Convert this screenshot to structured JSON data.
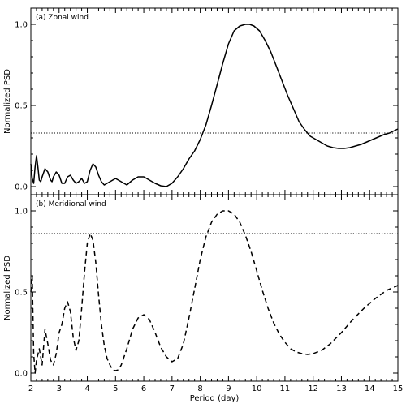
{
  "chart_data": [
    {
      "type": "line",
      "panel_label": "(a) Zonal wind",
      "xlabel": "",
      "ylabel": "Normalized PSD",
      "xlim": [
        2,
        15
      ],
      "ylim": [
        -0.05,
        1.1
      ],
      "xticks": [
        2,
        3,
        4,
        5,
        6,
        7,
        8,
        9,
        10,
        11,
        12,
        13,
        14,
        15
      ],
      "yticks": [
        0.0,
        0.5,
        1.0
      ],
      "ytick_labels": [
        "0.0",
        "0.5",
        "1.0"
      ],
      "xtick_labels": [
        "",
        "",
        "",
        "",
        "",
        "",
        "",
        "",
        "",
        "",
        "",
        "",
        "",
        ""
      ],
      "threshold": 0.33,
      "threshold_style": "dotted",
      "series": [
        {
          "line_style": "solid",
          "x": [
            2.0,
            2.05,
            2.1,
            2.15,
            2.2,
            2.25,
            2.3,
            2.35,
            2.4,
            2.5,
            2.6,
            2.7,
            2.75,
            2.8,
            2.9,
            3.0,
            3.1,
            3.2,
            3.3,
            3.4,
            3.5,
            3.6,
            3.7,
            3.8,
            3.9,
            4.0,
            4.1,
            4.2,
            4.3,
            4.4,
            4.5,
            4.6,
            4.8,
            5.0,
            5.2,
            5.4,
            5.6,
            5.8,
            6.0,
            6.2,
            6.4,
            6.6,
            6.8,
            7.0,
            7.2,
            7.4,
            7.6,
            7.8,
            8.0,
            8.2,
            8.4,
            8.6,
            8.8,
            9.0,
            9.2,
            9.4,
            9.6,
            9.75,
            9.9,
            10.1,
            10.3,
            10.5,
            10.7,
            10.9,
            11.1,
            11.3,
            11.5,
            11.7,
            11.9,
            12.1,
            12.3,
            12.5,
            12.7,
            12.9,
            13.1,
            13.3,
            13.5,
            13.7,
            13.9,
            14.1,
            14.3,
            14.5,
            14.7,
            15.0
          ],
          "y": [
            0.14,
            0.05,
            0.02,
            0.12,
            0.19,
            0.12,
            0.04,
            0.03,
            0.06,
            0.11,
            0.09,
            0.04,
            0.03,
            0.06,
            0.09,
            0.07,
            0.02,
            0.02,
            0.06,
            0.07,
            0.04,
            0.02,
            0.03,
            0.05,
            0.02,
            0.03,
            0.1,
            0.14,
            0.12,
            0.07,
            0.03,
            0.01,
            0.03,
            0.05,
            0.03,
            0.01,
            0.04,
            0.06,
            0.06,
            0.04,
            0.02,
            0.005,
            0.0,
            0.02,
            0.06,
            0.11,
            0.17,
            0.22,
            0.29,
            0.38,
            0.5,
            0.63,
            0.76,
            0.88,
            0.96,
            0.99,
            1.0,
            1.0,
            0.99,
            0.96,
            0.9,
            0.83,
            0.74,
            0.65,
            0.56,
            0.48,
            0.4,
            0.35,
            0.31,
            0.29,
            0.27,
            0.25,
            0.24,
            0.235,
            0.235,
            0.24,
            0.25,
            0.26,
            0.275,
            0.29,
            0.305,
            0.32,
            0.33,
            0.355
          ]
        }
      ]
    },
    {
      "type": "line",
      "panel_label": "(b) Meridional wind",
      "xlabel": "Period (day)",
      "ylabel": "Normalized PSD",
      "xlim": [
        2,
        15
      ],
      "ylim": [
        -0.05,
        1.1
      ],
      "xticks": [
        2,
        3,
        4,
        5,
        6,
        7,
        8,
        9,
        10,
        11,
        12,
        13,
        14,
        15
      ],
      "xtick_labels": [
        "2",
        "3",
        "4",
        "5",
        "6",
        "7",
        "8",
        "9",
        "10",
        "11",
        "12",
        "13",
        "14",
        "15"
      ],
      "yticks": [
        0.0,
        0.5,
        1.0
      ],
      "ytick_labels": [
        "0.0",
        "0.5",
        "1.0"
      ],
      "threshold": 0.86,
      "threshold_style": "dotted",
      "series": [
        {
          "line_style": "dashed",
          "x": [
            2.0,
            2.05,
            2.1,
            2.15,
            2.2,
            2.3,
            2.4,
            2.5,
            2.6,
            2.7,
            2.8,
            2.9,
            3.0,
            3.1,
            3.2,
            3.3,
            3.4,
            3.5,
            3.6,
            3.7,
            3.8,
            3.9,
            4.0,
            4.1,
            4.2,
            4.3,
            4.4,
            4.5,
            4.6,
            4.7,
            4.8,
            4.9,
            5.0,
            5.1,
            5.2,
            5.4,
            5.6,
            5.8,
            6.0,
            6.2,
            6.4,
            6.6,
            6.8,
            7.0,
            7.2,
            7.4,
            7.6,
            7.8,
            8.0,
            8.2,
            8.4,
            8.6,
            8.8,
            9.0,
            9.2,
            9.4,
            9.6,
            9.8,
            10.0,
            10.2,
            10.4,
            10.6,
            10.8,
            11.0,
            11.2,
            11.4,
            11.6,
            11.8,
            12.0,
            12.3,
            12.6,
            13.0,
            13.4,
            13.8,
            14.2,
            14.6,
            15.0
          ],
          "y": [
            0.5,
            0.6,
            0.12,
            0.0,
            0.08,
            0.15,
            0.05,
            0.27,
            0.18,
            0.08,
            0.05,
            0.12,
            0.25,
            0.3,
            0.4,
            0.44,
            0.38,
            0.22,
            0.14,
            0.2,
            0.4,
            0.62,
            0.8,
            0.86,
            0.82,
            0.68,
            0.48,
            0.3,
            0.17,
            0.09,
            0.05,
            0.02,
            0.015,
            0.02,
            0.05,
            0.15,
            0.27,
            0.34,
            0.36,
            0.33,
            0.25,
            0.16,
            0.1,
            0.07,
            0.09,
            0.18,
            0.34,
            0.52,
            0.7,
            0.84,
            0.93,
            0.98,
            1.0,
            1.0,
            0.98,
            0.93,
            0.85,
            0.75,
            0.63,
            0.51,
            0.4,
            0.31,
            0.24,
            0.19,
            0.15,
            0.13,
            0.12,
            0.115,
            0.12,
            0.14,
            0.18,
            0.25,
            0.33,
            0.4,
            0.46,
            0.51,
            0.54
          ]
        }
      ]
    }
  ]
}
